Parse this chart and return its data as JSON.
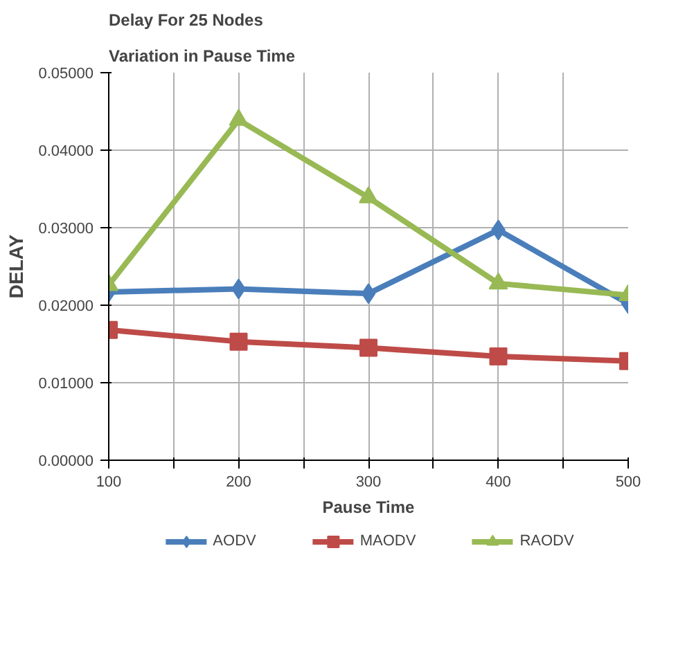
{
  "chart_data": {
    "type": "line",
    "title": "Delay For 25 Nodes",
    "subtitle": "Variation in Pause Time",
    "xlabel": "Pause Time",
    "ylabel": "DELAY",
    "x": [
      100,
      200,
      300,
      400,
      500
    ],
    "series": [
      {
        "name": "AODV",
        "color": "#4a7ebb",
        "marker": "diamond",
        "values": [
          0.0217,
          0.0221,
          0.0215,
          0.0297,
          0.0202
        ]
      },
      {
        "name": "MAODV",
        "color": "#be4b48",
        "marker": "square",
        "values": [
          0.0168,
          0.0153,
          0.0145,
          0.0134,
          0.0128
        ]
      },
      {
        "name": "RAODV",
        "color": "#98b954",
        "marker": "triangle",
        "values": [
          0.0226,
          0.0439,
          0.0339,
          0.0228,
          0.0213
        ]
      }
    ],
    "xlim": [
      100,
      500
    ],
    "xticks": [
      100,
      {
        "value": 150,
        "label": null
      },
      200,
      {
        "value": 250,
        "label": null
      },
      300,
      {
        "value": 350,
        "label": null
      },
      400,
      {
        "value": 450,
        "label": null
      },
      500
    ],
    "ylim": [
      0,
      0.05
    ],
    "yticks": [
      {
        "value": 0,
        "label": "0.00000"
      },
      {
        "value": 0.01,
        "label": "0.01000"
      },
      {
        "value": 0.02,
        "label": "0.02000"
      },
      {
        "value": 0.03,
        "label": "0.03000"
      },
      {
        "value": 0.04,
        "label": "0.04000"
      },
      {
        "value": 0.05,
        "label": "0.05000"
      }
    ],
    "grid": true,
    "legend": "bottom",
    "line_style": "solid"
  }
}
